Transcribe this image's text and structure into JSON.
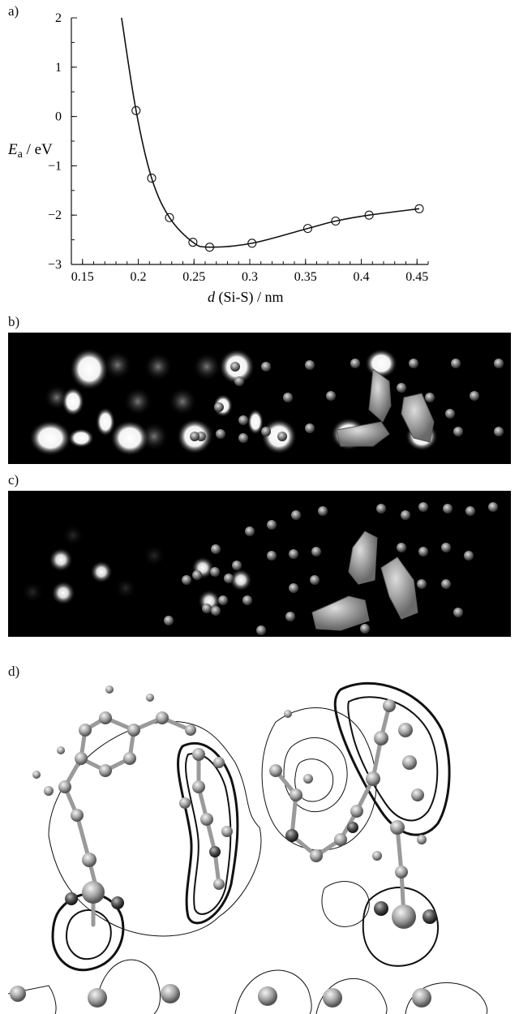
{
  "figure": {
    "panel_a_label": "a)",
    "panel_b_label": "b)",
    "panel_c_label": "c)",
    "panel_d_label": "d)"
  },
  "chart_data": {
    "type": "line",
    "title": "",
    "xlabel_italic": "d",
    "xlabel_rest": " (Si-S) / nm",
    "ylabel_main": "E",
    "ylabel_sub": "a",
    "ylabel_unit": " / eV",
    "xlim": [
      0.14,
      0.46
    ],
    "ylim": [
      -3,
      2
    ],
    "xticks": [
      0.15,
      0.2,
      0.25,
      0.3,
      0.35,
      0.4,
      0.45
    ],
    "xtick_labels": [
      "0.15",
      "0.2",
      "0.25",
      "0.3",
      "0.35",
      "0.4",
      "0.45"
    ],
    "yticks": [
      2,
      1,
      0,
      -1,
      -2,
      -3
    ],
    "ytick_labels": [
      "2",
      "1",
      "0",
      "−1",
      "−2",
      "−3"
    ],
    "points": [
      {
        "x": 0.198,
        "y": 0.12
      },
      {
        "x": 0.212,
        "y": -1.25
      },
      {
        "x": 0.228,
        "y": -2.05
      },
      {
        "x": 0.249,
        "y": -2.55
      },
      {
        "x": 0.264,
        "y": -2.65
      },
      {
        "x": 0.302,
        "y": -2.57
      },
      {
        "x": 0.352,
        "y": -2.27
      },
      {
        "x": 0.377,
        "y": -2.12
      },
      {
        "x": 0.407,
        "y": -2.0
      },
      {
        "x": 0.452,
        "y": -1.87
      }
    ],
    "curve_start": {
      "x": 0.185,
      "y": 2.0
    },
    "grid": false
  }
}
